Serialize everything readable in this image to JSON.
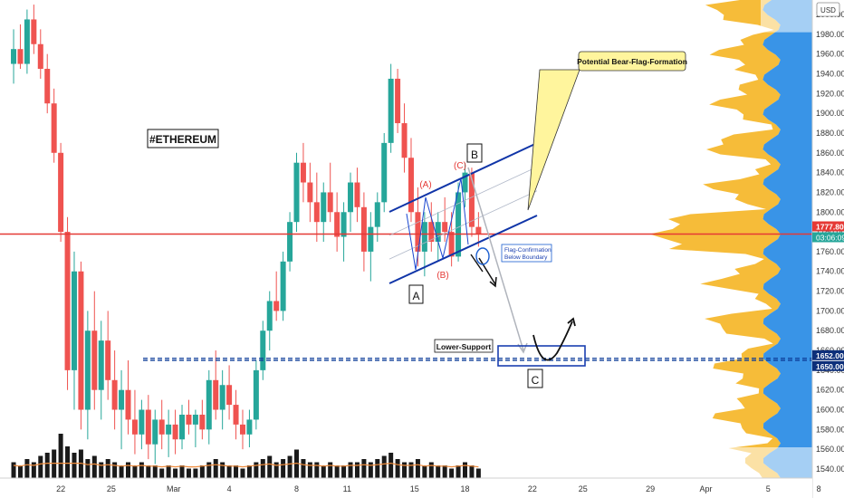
{
  "chart_data": {
    "type": "candlestick",
    "title": "#ETHEREUM",
    "currency": "USD",
    "y_ticks": [
      2000,
      1980,
      1960,
      1940,
      1920,
      1900,
      1880,
      1860,
      1840,
      1820,
      1800,
      1780,
      1760,
      1740,
      1720,
      1700,
      1680,
      1660,
      1640,
      1620,
      1600,
      1580,
      1560,
      1540
    ],
    "y_tick_labels": [
      "2000.00",
      "1980.00",
      "1960.00",
      "1940.00",
      "1920.00",
      "1900.00",
      "1880.00",
      "1860.00",
      "1840.00",
      "1820.00",
      "1800.00",
      "1780.00",
      "1760.00",
      "1740.00",
      "1720.00",
      "1700.00",
      "1680.00",
      "1660.00",
      "1640.00",
      "1620.00",
      "1600.00",
      "1580.00",
      "1560.00",
      "1540.00"
    ],
    "ylim": [
      1533,
      2015
    ],
    "x_ticks": [
      {
        "day": 22,
        "label": "22"
      },
      {
        "day": 25,
        "label": "25"
      },
      {
        "day": 28.7,
        "label": "Mar"
      },
      {
        "day": 32,
        "label": "4"
      },
      {
        "day": 36,
        "label": "8"
      },
      {
        "day": 39,
        "label": "11"
      },
      {
        "day": 43,
        "label": "15"
      },
      {
        "day": 46,
        "label": "18"
      },
      {
        "day": 50,
        "label": "22"
      },
      {
        "day": 53,
        "label": "25"
      },
      {
        "day": 57,
        "label": "29"
      },
      {
        "day": 60.3,
        "label": "Apr"
      },
      {
        "day": 64,
        "label": "5"
      },
      {
        "day": 67,
        "label": "8"
      }
    ],
    "xlim": [
      19.2,
      68.5
    ],
    "price_line": {
      "value": 1777.8,
      "label": "1777.80",
      "countdown": "03:06:09",
      "color": "#e53935"
    },
    "support": {
      "values": [
        1652.0,
        1650.0
      ],
      "labels": [
        "1652.00",
        "1650.00"
      ],
      "color": "#0d3d99"
    },
    "candles": [
      [
        19.2,
        1950,
        1985,
        1930,
        1965
      ],
      [
        19.6,
        1965,
        1990,
        1945,
        1950
      ],
      [
        20.0,
        1950,
        2005,
        1940,
        1995
      ],
      [
        20.4,
        1995,
        2010,
        1960,
        1970
      ],
      [
        20.8,
        1970,
        1985,
        1935,
        1945
      ],
      [
        21.2,
        1945,
        1960,
        1900,
        1910
      ],
      [
        21.6,
        1910,
        1925,
        1850,
        1860
      ],
      [
        22.0,
        1860,
        1870,
        1770,
        1780
      ],
      [
        22.4,
        1780,
        1795,
        1620,
        1640
      ],
      [
        22.8,
        1640,
        1760,
        1600,
        1740
      ],
      [
        23.2,
        1740,
        1750,
        1580,
        1600
      ],
      [
        23.6,
        1600,
        1700,
        1570,
        1680
      ],
      [
        24.0,
        1680,
        1720,
        1600,
        1620
      ],
      [
        24.4,
        1620,
        1690,
        1590,
        1670
      ],
      [
        24.8,
        1670,
        1700,
        1610,
        1630
      ],
      [
        25.2,
        1630,
        1660,
        1580,
        1600
      ],
      [
        25.6,
        1600,
        1640,
        1560,
        1620
      ],
      [
        26.0,
        1620,
        1650,
        1575,
        1590
      ],
      [
        26.4,
        1590,
        1620,
        1555,
        1575
      ],
      [
        26.8,
        1575,
        1610,
        1560,
        1600
      ],
      [
        27.2,
        1600,
        1615,
        1550,
        1565
      ],
      [
        27.6,
        1565,
        1600,
        1545,
        1590
      ],
      [
        28.0,
        1590,
        1610,
        1560,
        1575
      ],
      [
        28.4,
        1575,
        1600,
        1552,
        1585
      ],
      [
        28.8,
        1585,
        1600,
        1555,
        1570
      ],
      [
        29.2,
        1570,
        1605,
        1560,
        1595
      ],
      [
        29.6,
        1595,
        1610,
        1575,
        1585
      ],
      [
        30.0,
        1585,
        1600,
        1562,
        1595
      ],
      [
        30.4,
        1595,
        1610,
        1570,
        1580
      ],
      [
        30.8,
        1580,
        1640,
        1565,
        1630
      ],
      [
        31.2,
        1630,
        1660,
        1590,
        1600
      ],
      [
        31.6,
        1600,
        1640,
        1580,
        1625
      ],
      [
        32.0,
        1625,
        1645,
        1590,
        1605
      ],
      [
        32.4,
        1605,
        1620,
        1570,
        1585
      ],
      [
        32.8,
        1585,
        1600,
        1560,
        1575
      ],
      [
        33.2,
        1575,
        1600,
        1562,
        1590
      ],
      [
        33.6,
        1590,
        1650,
        1580,
        1640
      ],
      [
        34.0,
        1640,
        1690,
        1630,
        1680
      ],
      [
        34.4,
        1680,
        1720,
        1660,
        1710
      ],
      [
        34.8,
        1710,
        1740,
        1690,
        1700
      ],
      [
        35.2,
        1700,
        1760,
        1690,
        1750
      ],
      [
        35.6,
        1750,
        1800,
        1740,
        1790
      ],
      [
        36.0,
        1790,
        1860,
        1780,
        1850
      ],
      [
        36.4,
        1850,
        1870,
        1810,
        1830
      ],
      [
        36.8,
        1830,
        1850,
        1790,
        1810
      ],
      [
        37.2,
        1810,
        1840,
        1770,
        1790
      ],
      [
        37.6,
        1790,
        1830,
        1770,
        1820
      ],
      [
        38.0,
        1820,
        1850,
        1790,
        1800
      ],
      [
        38.4,
        1800,
        1820,
        1760,
        1775
      ],
      [
        38.8,
        1775,
        1810,
        1750,
        1800
      ],
      [
        39.2,
        1800,
        1840,
        1780,
        1830
      ],
      [
        39.6,
        1830,
        1845,
        1790,
        1805
      ],
      [
        40.0,
        1805,
        1820,
        1740,
        1760
      ],
      [
        40.4,
        1760,
        1800,
        1730,
        1785
      ],
      [
        40.8,
        1785,
        1820,
        1770,
        1810
      ],
      [
        41.2,
        1810,
        1880,
        1800,
        1870
      ],
      [
        41.6,
        1870,
        1950,
        1860,
        1935
      ],
      [
        42.0,
        1935,
        1945,
        1880,
        1890
      ],
      [
        42.4,
        1890,
        1910,
        1840,
        1855
      ],
      [
        42.8,
        1855,
        1875,
        1790,
        1800
      ],
      [
        43.2,
        1800,
        1825,
        1745,
        1760
      ],
      [
        43.6,
        1760,
        1800,
        1735,
        1790
      ],
      [
        44.0,
        1790,
        1810,
        1760,
        1770
      ],
      [
        44.4,
        1770,
        1800,
        1750,
        1790
      ],
      [
        44.8,
        1790,
        1815,
        1770,
        1780
      ],
      [
        45.2,
        1780,
        1800,
        1745,
        1755
      ],
      [
        45.6,
        1755,
        1830,
        1750,
        1820
      ],
      [
        46.0,
        1820,
        1850,
        1805,
        1840
      ],
      [
        46.4,
        1840,
        1845,
        1775,
        1785
      ],
      [
        46.8,
        1785,
        1800,
        1765,
        1778
      ]
    ],
    "volume": [
      5,
      4,
      6,
      5,
      7,
      8,
      9,
      14,
      10,
      8,
      9,
      6,
      7,
      5,
      6,
      5,
      4,
      5,
      4,
      5,
      4,
      4,
      3,
      4,
      3,
      4,
      3,
      3,
      4,
      5,
      6,
      5,
      4,
      4,
      3,
      4,
      5,
      6,
      7,
      5,
      6,
      7,
      9,
      6,
      5,
      5,
      4,
      5,
      4,
      4,
      5,
      5,
      6,
      5,
      6,
      7,
      8,
      6,
      5,
      5,
      6,
      4,
      5,
      4,
      4,
      3,
      4,
      5,
      4,
      3
    ],
    "annotations": {
      "callout": "Potential Bear-Flag-Formation",
      "flag_confirm_line1": "Flag-Confirmation",
      "flag_confirm_line2": "Below Boundary",
      "lower_support": "Lower-Support",
      "wave_A": "A",
      "wave_B": "B",
      "wave_C": "C",
      "sub_A": "(A)",
      "sub_B": "(B)",
      "sub_C": "(C)"
    },
    "colors": {
      "up": "#26a69a",
      "down": "#ef5350",
      "channel": "#1035a8",
      "profile_orange": "#f5b82e",
      "profile_blue": "#2e8ee6"
    }
  }
}
